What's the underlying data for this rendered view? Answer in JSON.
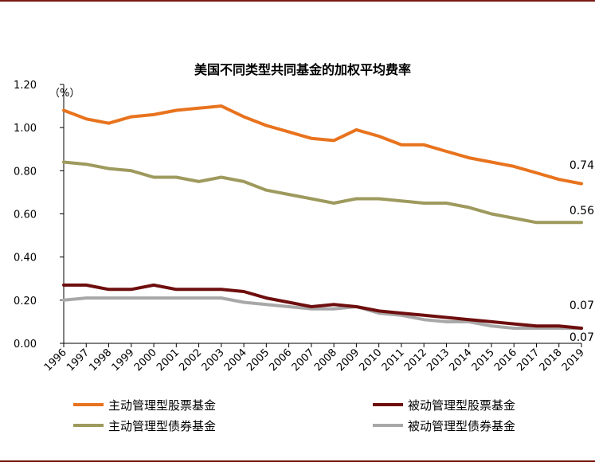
{
  "chart_data": {
    "type": "line",
    "title": "美国不同类型共同基金的加权平均费率",
    "unit_label": "（%）",
    "xlabel": "",
    "ylabel": "",
    "ylim": [
      0,
      1.2
    ],
    "yticks": [
      "0.00",
      "0.20",
      "0.40",
      "0.60",
      "0.80",
      "1.00",
      "1.20"
    ],
    "ytick_values": [
      0,
      0.2,
      0.4,
      0.6,
      0.8,
      1.0,
      1.2
    ],
    "categories": [
      "1996",
      "1997",
      "1998",
      "1999",
      "2000",
      "2001",
      "2002",
      "2003",
      "2004",
      "2005",
      "2006",
      "2007",
      "2008",
      "2009",
      "2010",
      "2011",
      "2012",
      "2013",
      "2014",
      "2015",
      "2016",
      "2017",
      "2018",
      "2019"
    ],
    "grid": false,
    "legend_position": "bottom",
    "series": [
      {
        "name": "主动管理型股票基金",
        "color": "#e8731e",
        "values": [
          1.08,
          1.04,
          1.02,
          1.05,
          1.06,
          1.08,
          1.09,
          1.1,
          1.05,
          1.01,
          0.98,
          0.95,
          0.94,
          0.99,
          0.96,
          0.92,
          0.92,
          0.89,
          0.86,
          0.84,
          0.82,
          0.79,
          0.76,
          0.74
        ],
        "end_label": "0.74"
      },
      {
        "name": "被动管理型股票基金",
        "color": "#6e0e0e",
        "values": [
          0.27,
          0.27,
          0.25,
          0.25,
          0.27,
          0.25,
          0.25,
          0.25,
          0.24,
          0.21,
          0.19,
          0.17,
          0.18,
          0.17,
          0.15,
          0.14,
          0.13,
          0.12,
          0.11,
          0.1,
          0.09,
          0.08,
          0.08,
          0.07
        ],
        "end_label": "0.07"
      },
      {
        "name": "主动管理型债券基金",
        "color": "#9e9a5e",
        "values": [
          0.84,
          0.83,
          0.81,
          0.8,
          0.77,
          0.77,
          0.75,
          0.77,
          0.75,
          0.71,
          0.69,
          0.67,
          0.65,
          0.67,
          0.67,
          0.66,
          0.65,
          0.65,
          0.63,
          0.6,
          0.58,
          0.56,
          0.56,
          0.56
        ],
        "end_label": "0.56"
      },
      {
        "name": "被动管理型债券基金",
        "color": "#a8a8a8",
        "values": [
          0.2,
          0.21,
          0.21,
          0.21,
          0.21,
          0.21,
          0.21,
          0.21,
          0.19,
          0.18,
          0.17,
          0.16,
          0.16,
          0.17,
          0.14,
          0.13,
          0.11,
          0.1,
          0.1,
          0.08,
          0.07,
          0.07,
          0.07,
          0.07
        ],
        "end_label": "0.07"
      }
    ]
  }
}
